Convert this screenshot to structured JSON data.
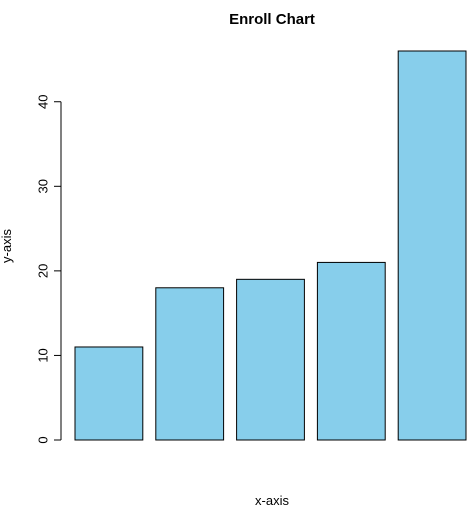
{
  "chart_data": {
    "type": "bar",
    "title": "Enroll Chart",
    "xlabel": "x-axis",
    "ylabel": "y-axis",
    "categories": [
      "",
      "",
      "",
      "",
      ""
    ],
    "values": [
      11,
      18,
      19,
      21,
      46
    ],
    "ylim": [
      0,
      46
    ],
    "yticks": [
      0,
      10,
      20,
      30,
      40
    ],
    "ytick_labels": [
      "0",
      "10",
      "20",
      "30",
      "40"
    ],
    "grid": false,
    "legend": "none",
    "bar_color": "#87CEEB",
    "bar_edge_color": "#000000"
  }
}
